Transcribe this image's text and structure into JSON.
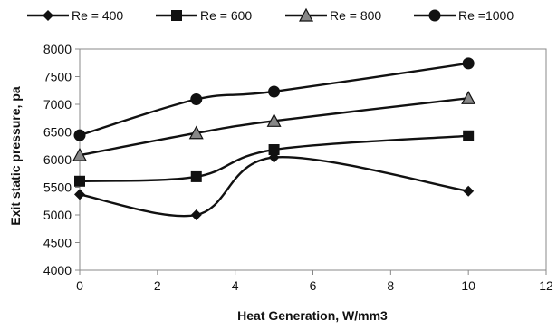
{
  "chart_data": {
    "type": "line",
    "title": "",
    "xlabel": "Heat Generation, W/mm3",
    "ylabel": "Exit static pressure, pa",
    "xlim": [
      0,
      12
    ],
    "ylim": [
      4000,
      8000
    ],
    "xticks": [
      0,
      2,
      4,
      6,
      8,
      10,
      12
    ],
    "yticks": [
      4000,
      4500,
      5000,
      5500,
      6000,
      6500,
      7000,
      7500,
      8000
    ],
    "grid": "none",
    "legend": "top",
    "smooth": true,
    "series": [
      {
        "name": "Re = 400",
        "marker": "diamond",
        "x": [
          0,
          3,
          5,
          10
        ],
        "y": [
          5370,
          5000,
          6040,
          5430
        ]
      },
      {
        "name": "Re = 600",
        "marker": "square",
        "x": [
          0,
          3,
          5,
          10
        ],
        "y": [
          5610,
          5690,
          6180,
          6430
        ]
      },
      {
        "name": "Re = 800",
        "marker": "triangle",
        "x": [
          0,
          3,
          5,
          10
        ],
        "y": [
          6080,
          6480,
          6700,
          7110
        ]
      },
      {
        "name": "Re =1000",
        "marker": "circle",
        "x": [
          0,
          3,
          5,
          10
        ],
        "y": [
          6440,
          7090,
          7230,
          7740
        ]
      }
    ],
    "line_color": "#111111",
    "marker_color": "#111111"
  }
}
